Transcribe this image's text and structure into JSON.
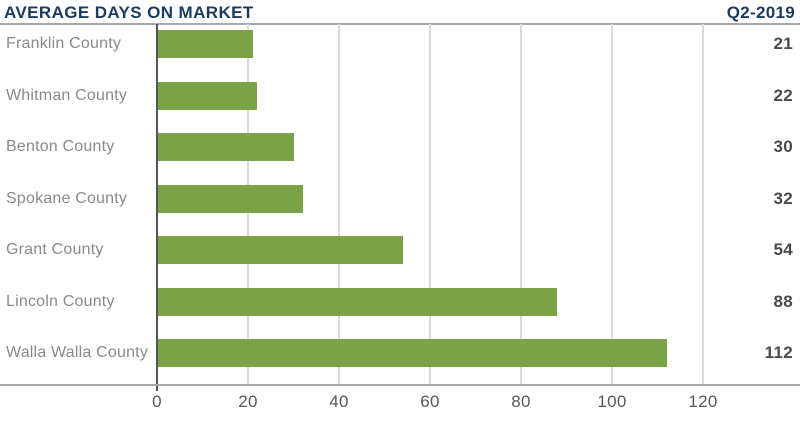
{
  "header": {
    "title": "AVERAGE DAYS ON MARKET",
    "period": "Q2-2019"
  },
  "chart_data": {
    "type": "bar",
    "orientation": "horizontal",
    "title": "AVERAGE DAYS ON MARKET",
    "subtitle": "Q2-2019",
    "categories": [
      "Franklin County",
      "Whitman County",
      "Benton County",
      "Spokane County",
      "Grant County",
      "Lincoln County",
      "Walla Walla County"
    ],
    "values": [
      21,
      22,
      30,
      32,
      54,
      88,
      112
    ],
    "value_labels": [
      "21",
      "22",
      "30",
      "32",
      "54",
      "88",
      "112"
    ],
    "xlabel": "",
    "ylabel": "",
    "xticks": [
      0,
      20,
      40,
      60,
      80,
      100,
      120
    ],
    "xtick_labels": [
      "0",
      "20",
      "40",
      "60",
      "80",
      "100",
      "120"
    ],
    "xlim": [
      0,
      141
    ],
    "grid": "vertical",
    "legend": "none",
    "bar_color": "#7AA346"
  },
  "colors": {
    "title_navy": "#1C3A5E",
    "bar_green": "#7AA346",
    "category_label_gray": "#8A8A8A",
    "value_gray": "#4A4A4A",
    "tick_gray": "#575757",
    "gridline_gray": "#D9D9D9",
    "border_gray": "#A5A8AC",
    "zero_line_dark": "#52575E"
  }
}
